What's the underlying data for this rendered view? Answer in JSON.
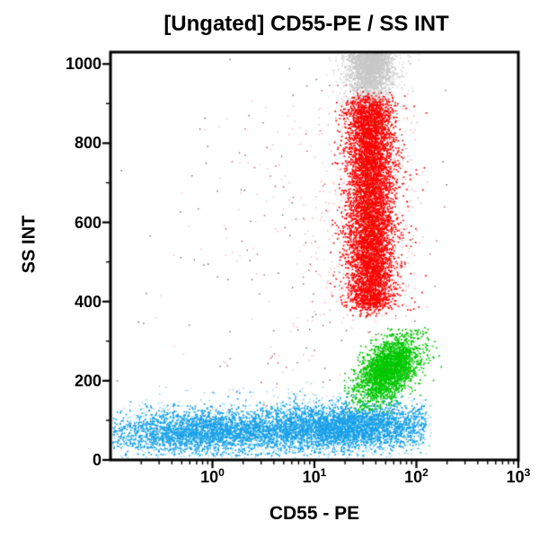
{
  "chart_data": {
    "type": "scatter",
    "title": "[Ungated] CD55-PE / SS INT",
    "xlabel": "CD55 - PE",
    "ylabel": "SS INT",
    "x_scale": "log10",
    "x_tick_base": "10",
    "x_tick_exponents": [
      0,
      1,
      2,
      3
    ],
    "x_range_log10": [
      -1,
      3
    ],
    "y_range": [
      0,
      1030
    ],
    "y_ticks": [
      0,
      200,
      400,
      600,
      800,
      1000
    ],
    "y_minor_ticks": [
      100,
      300,
      500,
      700,
      900
    ],
    "grid": false,
    "legend": false,
    "background_color": "#ffffff",
    "axis_color": "#000000",
    "populations": [
      {
        "name": "gray-top-cluster-fringe",
        "color": "#dedede",
        "n": 550,
        "dot_size": 1.5,
        "x_log10": {
          "components": [
            {
              "w": 1,
              "mean": 1.55,
              "sd": 0.17
            }
          ],
          "clip": [
            1.1,
            2.15
          ]
        },
        "y": {
          "dist": "normal",
          "mean": 990,
          "sd": 70,
          "clip": [
            880,
            1026
          ],
          "pile_top": true
        }
      },
      {
        "name": "gray-top-cluster",
        "color": "#c8c8c8",
        "n": 1700,
        "dot_size": 1.6,
        "x_log10": {
          "components": [
            {
              "w": 0.85,
              "mean": 1.55,
              "sd": 0.095
            },
            {
              "w": 0.15,
              "mean": 1.55,
              "sd": 0.19
            }
          ],
          "clip": [
            1.2,
            2.1
          ]
        },
        "y": {
          "dist": "normal",
          "mean": 1012,
          "sd": 50,
          "clip": [
            890,
            1026
          ],
          "pile_top": true
        }
      },
      {
        "name": "blue-low-ssc-band-fringe",
        "color": "#85d6f4",
        "n": 1800,
        "dot_size": 1.5,
        "x_log10": {
          "components": [
            {
              "w": 0.42,
              "mean": -0.1,
              "sd": 0.55
            },
            {
              "w": 0.58,
              "mean": 1.3,
              "sd": 0.53
            }
          ],
          "clip": [
            -0.98,
            2.16
          ]
        },
        "y": {
          "dist": "normal",
          "mean": 70,
          "sd": 40,
          "slope_per_xlog": 8,
          "clip": [
            5,
            200
          ]
        }
      },
      {
        "name": "blue-low-ssc-band",
        "color": "#18a0e8",
        "n": 5200,
        "dot_size": 1.7,
        "x_log10": {
          "components": [
            {
              "w": 0.42,
              "mean": -0.1,
              "sd": 0.5
            },
            {
              "w": 0.58,
              "mean": 1.3,
              "sd": 0.48
            }
          ],
          "clip": [
            -0.98,
            2.1
          ]
        },
        "y": {
          "dist": "normal",
          "mean": 72,
          "sd": 28,
          "slope_per_xlog": 8,
          "clip": [
            10,
            175
          ]
        }
      },
      {
        "name": "green-mid-ssc-cluster",
        "color": "#00c800",
        "n": 2400,
        "dot_size": 1.7,
        "x_log10": {
          "components": [
            {
              "w": 1,
              "mean": 1.72,
              "sd": 0.15
            }
          ],
          "clip": [
            1.28,
            2.3
          ]
        },
        "y": {
          "dist": "normal",
          "mean": 228,
          "sd": 42,
          "corr": 0.45,
          "clip": [
            118,
            335
          ]
        }
      },
      {
        "name": "red-column-pink-halo",
        "color": "#ffa0a8",
        "n": 700,
        "dot_size": 1.4,
        "x_log10": {
          "components": [
            {
              "w": 1,
              "mean": 1.55,
              "sd": 0.22
            }
          ],
          "clip": [
            0.9,
            2.15
          ]
        },
        "y": {
          "dist": "uniform",
          "min": 380,
          "max": 910,
          "jitter_sd": 25,
          "clip": [
            340,
            935
          ]
        }
      },
      {
        "name": "scattered-pink-outliers",
        "color": "#ffb0b8",
        "n": 160,
        "dot_size": 1.4,
        "x_log10": {
          "components": [
            {
              "w": 1,
              "mean": 1.0,
              "sd": 0.55
            }
          ],
          "clip": [
            -0.7,
            2.25
          ]
        },
        "y": {
          "dist": "uniform",
          "min": 120,
          "max": 910,
          "jitter_sd": 0,
          "clip": [
            20,
            1020
          ]
        }
      },
      {
        "name": "scattered-crimson-outliers",
        "color": "#d04060",
        "n": 90,
        "dot_size": 1.4,
        "x_log10": {
          "components": [
            {
              "w": 1,
              "mean": 1.0,
              "sd": 0.6
            }
          ],
          "clip": [
            -0.8,
            2.3
          ]
        },
        "y": {
          "dist": "uniform",
          "min": 120,
          "max": 950,
          "jitter_sd": 0,
          "clip": [
            20,
            1020
          ]
        }
      },
      {
        "name": "red-high-ssc-column",
        "color": "#ff0000",
        "n": 6200,
        "dot_size": 1.7,
        "x_log10": {
          "components": [
            {
              "w": 0.86,
              "mean": 1.55,
              "sd": 0.105
            },
            {
              "w": 0.14,
              "mean": 1.55,
              "sd": 0.19
            }
          ],
          "clip": [
            1.15,
            2.1
          ]
        },
        "y": {
          "dist": "uniform",
          "min": 385,
          "max": 905,
          "jitter_sd": 15,
          "clip": [
            362,
            930
          ]
        }
      },
      {
        "name": "green-specks-in-red",
        "color": "#30c830",
        "n": 45,
        "dot_size": 1.3,
        "x_log10": {
          "components": [
            {
              "w": 1,
              "mean": 1.55,
              "sd": 0.08
            }
          ],
          "clip": [
            1.3,
            1.9
          ]
        },
        "y": {
          "dist": "uniform",
          "min": 400,
          "max": 880,
          "jitter_sd": 0,
          "clip": [
            380,
            900
          ]
        }
      },
      {
        "name": "dark-scattered-specks",
        "color": "#606060",
        "n": 80,
        "dot_size": 1.4,
        "x_log10": {
          "components": [
            {
              "w": 1,
              "mean": 0.8,
              "sd": 1.1
            }
          ],
          "clip": [
            -0.95,
            2.3
          ]
        },
        "y": {
          "dist": "normal",
          "mean": 500,
          "sd": 330,
          "clip": [
            20,
            1020
          ]
        }
      }
    ]
  }
}
